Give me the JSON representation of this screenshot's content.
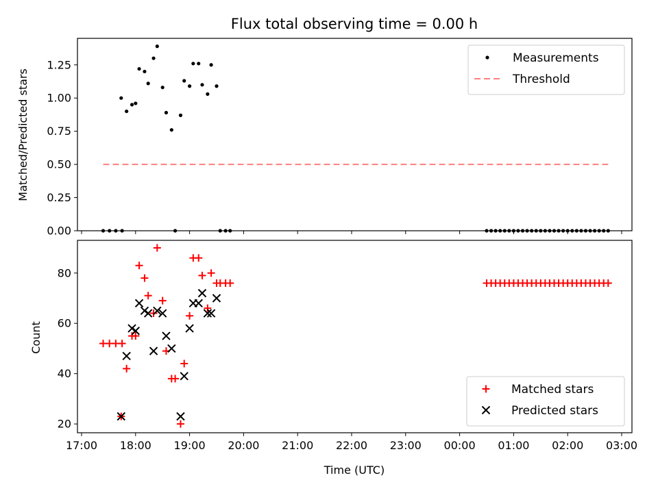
{
  "chart_data": [
    {
      "type": "scatter",
      "title": "Flux total observing time = 0.00 h",
      "ylabel": "Matched/Predicted stars",
      "xlabel": "",
      "xlim": [
        "17:00",
        "03:00"
      ],
      "ylim": [
        0,
        1.45
      ],
      "yticks": [
        "0.00",
        "0.25",
        "0.50",
        "0.75",
        "1.00",
        "1.25"
      ],
      "legend_position": "top-right",
      "grid": false,
      "series": [
        {
          "name": "Measurements",
          "marker": "dot",
          "color": "#000000",
          "points": [
            [
              "17:24",
              0
            ],
            [
              "17:31",
              0
            ],
            [
              "17:38",
              0
            ],
            [
              "17:45",
              0
            ],
            [
              "17:44",
              1.0
            ],
            [
              "17:50",
              0.9
            ],
            [
              "17:56",
              0.95
            ],
            [
              "18:00",
              0.96
            ],
            [
              "18:04",
              1.22
            ],
            [
              "18:10",
              1.2
            ],
            [
              "18:14",
              1.11
            ],
            [
              "18:20",
              1.3
            ],
            [
              "18:24",
              1.39
            ],
            [
              "18:30",
              1.08
            ],
            [
              "18:34",
              0.89
            ],
            [
              "18:40",
              0.76
            ],
            [
              "18:44",
              0
            ],
            [
              "18:50",
              0.87
            ],
            [
              "18:54",
              1.13
            ],
            [
              "19:00",
              1.09
            ],
            [
              "19:04",
              1.26
            ],
            [
              "19:10",
              1.26
            ],
            [
              "19:14",
              1.1
            ],
            [
              "19:20",
              1.03
            ],
            [
              "19:24",
              1.25
            ],
            [
              "19:30",
              1.09
            ],
            [
              "19:34",
              0
            ],
            [
              "19:40",
              0
            ],
            [
              "19:45",
              0
            ],
            [
              "00:30",
              0
            ],
            [
              "00:35",
              0
            ],
            [
              "00:40",
              0
            ],
            [
              "00:45",
              0
            ],
            [
              "00:50",
              0
            ],
            [
              "00:55",
              0
            ],
            [
              "01:00",
              0
            ],
            [
              "01:05",
              0
            ],
            [
              "01:10",
              0
            ],
            [
              "01:15",
              0
            ],
            [
              "01:20",
              0
            ],
            [
              "01:25",
              0
            ],
            [
              "01:30",
              0
            ],
            [
              "01:35",
              0
            ],
            [
              "01:40",
              0
            ],
            [
              "01:45",
              0
            ],
            [
              "01:50",
              0
            ],
            [
              "01:55",
              0
            ],
            [
              "02:00",
              0
            ],
            [
              "02:05",
              0
            ],
            [
              "02:10",
              0
            ],
            [
              "02:15",
              0
            ],
            [
              "02:20",
              0
            ],
            [
              "02:25",
              0
            ],
            [
              "02:30",
              0
            ],
            [
              "02:35",
              0
            ],
            [
              "02:40",
              0
            ],
            [
              "02:45",
              0
            ]
          ]
        },
        {
          "name": "Threshold",
          "marker": "dashed-line",
          "color": "#ff7f7f",
          "points": [
            [
              "17:24",
              0.5
            ],
            [
              "02:45",
              0.5
            ]
          ]
        }
      ]
    },
    {
      "type": "scatter",
      "title": "",
      "ylabel": "Count",
      "xlabel": "Time (UTC)",
      "xlim": [
        "17:00",
        "03:00"
      ],
      "ylim": [
        16.5,
        93
      ],
      "yticks": [
        "20",
        "40",
        "60",
        "80"
      ],
      "xticks": [
        "17:00",
        "18:00",
        "19:00",
        "20:00",
        "21:00",
        "22:00",
        "23:00",
        "00:00",
        "01:00",
        "02:00",
        "03:00"
      ],
      "legend_position": "bottom-right",
      "grid": false,
      "series": [
        {
          "name": "Matched stars",
          "marker": "plus",
          "color": "#ff0000",
          "points": [
            [
              "17:24",
              52
            ],
            [
              "17:31",
              52
            ],
            [
              "17:38",
              52
            ],
            [
              "17:45",
              52
            ],
            [
              "17:44",
              23
            ],
            [
              "17:50",
              42
            ],
            [
              "17:56",
              55
            ],
            [
              "18:00",
              55
            ],
            [
              "18:04",
              83
            ],
            [
              "18:10",
              78
            ],
            [
              "18:14",
              71
            ],
            [
              "18:20",
              64
            ],
            [
              "18:24",
              90
            ],
            [
              "18:30",
              69
            ],
            [
              "18:34",
              49
            ],
            [
              "18:40",
              38
            ],
            [
              "18:44",
              38
            ],
            [
              "18:50",
              20
            ],
            [
              "18:54",
              44
            ],
            [
              "19:00",
              63
            ],
            [
              "19:04",
              86
            ],
            [
              "19:10",
              86
            ],
            [
              "19:14",
              79
            ],
            [
              "19:20",
              66
            ],
            [
              "19:24",
              80
            ],
            [
              "19:30",
              76
            ],
            [
              "19:34",
              76
            ],
            [
              "19:40",
              76
            ],
            [
              "19:45",
              76
            ],
            [
              "00:30",
              76
            ],
            [
              "00:35",
              76
            ],
            [
              "00:40",
              76
            ],
            [
              "00:45",
              76
            ],
            [
              "00:50",
              76
            ],
            [
              "00:55",
              76
            ],
            [
              "01:00",
              76
            ],
            [
              "01:05",
              76
            ],
            [
              "01:10",
              76
            ],
            [
              "01:15",
              76
            ],
            [
              "01:20",
              76
            ],
            [
              "01:25",
              76
            ],
            [
              "01:30",
              76
            ],
            [
              "01:35",
              76
            ],
            [
              "01:40",
              76
            ],
            [
              "01:45",
              76
            ],
            [
              "01:50",
              76
            ],
            [
              "01:55",
              76
            ],
            [
              "02:00",
              76
            ],
            [
              "02:05",
              76
            ],
            [
              "02:10",
              76
            ],
            [
              "02:15",
              76
            ],
            [
              "02:20",
              76
            ],
            [
              "02:25",
              76
            ],
            [
              "02:30",
              76
            ],
            [
              "02:35",
              76
            ],
            [
              "02:40",
              76
            ],
            [
              "02:45",
              76
            ]
          ]
        },
        {
          "name": "Predicted stars",
          "marker": "x",
          "color": "#000000",
          "points": [
            [
              "17:44",
              23
            ],
            [
              "17:50",
              47
            ],
            [
              "17:56",
              58
            ],
            [
              "18:00",
              57
            ],
            [
              "18:04",
              68
            ],
            [
              "18:10",
              65
            ],
            [
              "18:14",
              64
            ],
            [
              "18:20",
              49
            ],
            [
              "18:24",
              65
            ],
            [
              "18:30",
              64
            ],
            [
              "18:34",
              55
            ],
            [
              "18:40",
              50
            ],
            [
              "18:50",
              23
            ],
            [
              "18:54",
              39
            ],
            [
              "19:00",
              58
            ],
            [
              "19:04",
              68
            ],
            [
              "19:10",
              68
            ],
            [
              "19:14",
              72
            ],
            [
              "19:20",
              64
            ],
            [
              "19:24",
              64
            ],
            [
              "19:30",
              70
            ]
          ]
        }
      ]
    }
  ]
}
